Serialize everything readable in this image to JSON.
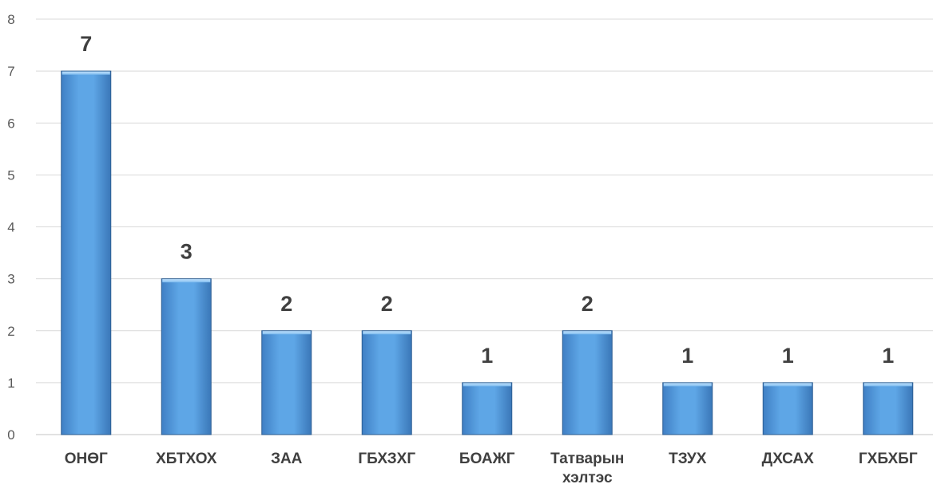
{
  "chart_data": {
    "type": "bar",
    "categories": [
      [
        "ОНӨГ"
      ],
      [
        "ХБТХОХ"
      ],
      [
        "ЗАА"
      ],
      [
        "ГБХЗХГ"
      ],
      [
        "БОАЖГ"
      ],
      [
        "Татварын",
        "хэлтэс"
      ],
      [
        "ТЗУХ"
      ],
      [
        "ДХСАХ"
      ],
      [
        "ГХБХБГ"
      ]
    ],
    "values": [
      7,
      3,
      2,
      2,
      1,
      2,
      1,
      1,
      1
    ],
    "data_labels": [
      "7",
      "3",
      "2",
      "2",
      "1",
      "2",
      "1",
      "1",
      "1"
    ],
    "yticks": [
      "0",
      "1",
      "2",
      "3",
      "4",
      "5",
      "6",
      "7",
      "8"
    ],
    "ylim": [
      0,
      8
    ],
    "grid": true,
    "legend": "none",
    "colors": {
      "bar_top": "#7fb8ec",
      "bar_mid": "#5a9fe0",
      "bar_bottom": "#3f7fc4",
      "bar_edge": "#2e5f93",
      "bar_cap": "#a8d4f7"
    }
  }
}
